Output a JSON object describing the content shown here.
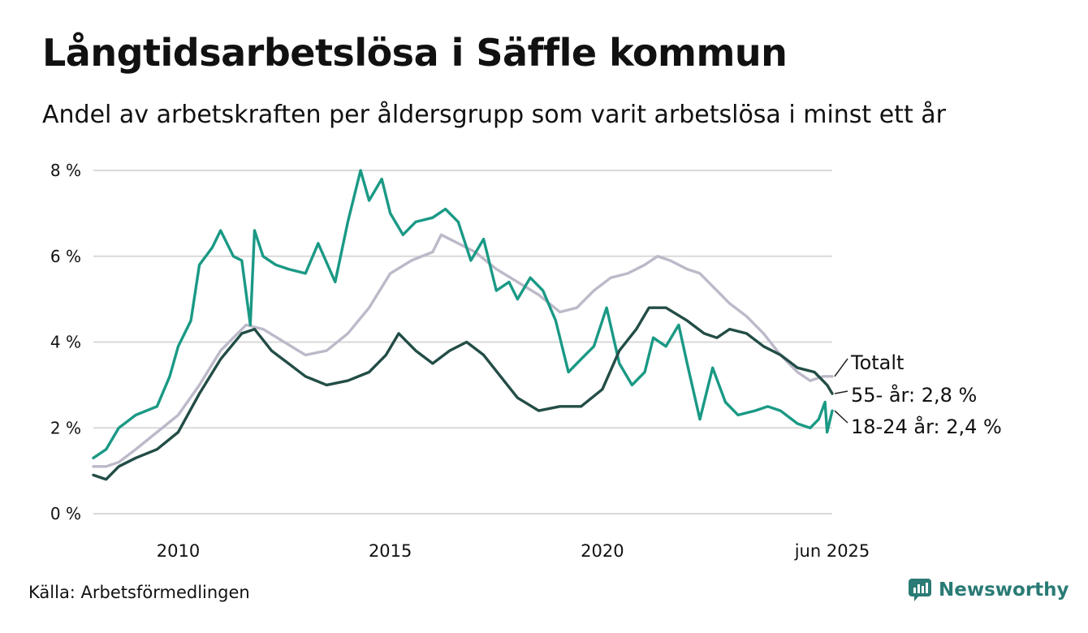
{
  "title": "Långtidsarbetslösa i Säffle kommun",
  "subtitle": "Andel av arbetskraften per åldersgrupp som varit arbetslösa i minst ett år",
  "source": "Källa: Arbetsförmedlingen",
  "brand": {
    "name": "Newsworthy",
    "icon": "newsworthy-logo-icon"
  },
  "colors": {
    "total": "#bdb9c9",
    "age55": "#234d47",
    "age1824": "#1a9985",
    "grid": "#d9d9d9"
  },
  "chart_data": {
    "type": "line",
    "y_unit": "%",
    "ylim": [
      0,
      8
    ],
    "yticks": [
      {
        "v": 0,
        "label": "0 %"
      },
      {
        "v": 2,
        "label": "2 %"
      },
      {
        "v": 4,
        "label": "4 %"
      },
      {
        "v": 6,
        "label": "6 %"
      },
      {
        "v": 8,
        "label": "8 %"
      }
    ],
    "xlim": [
      2008.0,
      2025.42
    ],
    "xticks": [
      {
        "v": 2010,
        "label": "2010"
      },
      {
        "v": 2015,
        "label": "2015"
      },
      {
        "v": 2020,
        "label": "2020"
      },
      {
        "v": 2025.42,
        "label": "jun 2025"
      }
    ],
    "grid": true,
    "series": [
      {
        "key": "total",
        "name": "Totalt",
        "label": "Totalt",
        "points": [
          [
            2008.0,
            1.1
          ],
          [
            2008.3,
            1.1
          ],
          [
            2008.6,
            1.2
          ],
          [
            2009.0,
            1.5
          ],
          [
            2009.5,
            1.9
          ],
          [
            2010.0,
            2.3
          ],
          [
            2010.5,
            3.0
          ],
          [
            2011.0,
            3.8
          ],
          [
            2011.3,
            4.1
          ],
          [
            2011.6,
            4.4
          ],
          [
            2012.0,
            4.3
          ],
          [
            2012.5,
            4.0
          ],
          [
            2013.0,
            3.7
          ],
          [
            2013.5,
            3.8
          ],
          [
            2014.0,
            4.2
          ],
          [
            2014.5,
            4.8
          ],
          [
            2015.0,
            5.6
          ],
          [
            2015.5,
            5.9
          ],
          [
            2016.0,
            6.1
          ],
          [
            2016.2,
            6.5
          ],
          [
            2016.6,
            6.3
          ],
          [
            2017.0,
            6.1
          ],
          [
            2017.5,
            5.7
          ],
          [
            2018.0,
            5.4
          ],
          [
            2018.5,
            5.1
          ],
          [
            2019.0,
            4.7
          ],
          [
            2019.4,
            4.8
          ],
          [
            2019.8,
            5.2
          ],
          [
            2020.2,
            5.5
          ],
          [
            2020.6,
            5.6
          ],
          [
            2021.0,
            5.8
          ],
          [
            2021.3,
            6.0
          ],
          [
            2021.6,
            5.9
          ],
          [
            2022.0,
            5.7
          ],
          [
            2022.3,
            5.6
          ],
          [
            2022.6,
            5.3
          ],
          [
            2023.0,
            4.9
          ],
          [
            2023.4,
            4.6
          ],
          [
            2023.8,
            4.2
          ],
          [
            2024.2,
            3.7
          ],
          [
            2024.6,
            3.3
          ],
          [
            2024.9,
            3.1
          ],
          [
            2025.2,
            3.2
          ],
          [
            2025.42,
            3.2
          ]
        ]
      },
      {
        "key": "age55",
        "name": "55- år",
        "label": "55- år: 2,8 %",
        "points": [
          [
            2008.0,
            0.9
          ],
          [
            2008.3,
            0.8
          ],
          [
            2008.6,
            1.1
          ],
          [
            2009.0,
            1.3
          ],
          [
            2009.5,
            1.5
          ],
          [
            2010.0,
            1.9
          ],
          [
            2010.5,
            2.8
          ],
          [
            2011.0,
            3.6
          ],
          [
            2011.5,
            4.2
          ],
          [
            2011.8,
            4.3
          ],
          [
            2012.2,
            3.8
          ],
          [
            2012.6,
            3.5
          ],
          [
            2013.0,
            3.2
          ],
          [
            2013.5,
            3.0
          ],
          [
            2014.0,
            3.1
          ],
          [
            2014.5,
            3.3
          ],
          [
            2014.9,
            3.7
          ],
          [
            2015.2,
            4.2
          ],
          [
            2015.6,
            3.8
          ],
          [
            2016.0,
            3.5
          ],
          [
            2016.4,
            3.8
          ],
          [
            2016.8,
            4.0
          ],
          [
            2017.2,
            3.7
          ],
          [
            2017.6,
            3.2
          ],
          [
            2018.0,
            2.7
          ],
          [
            2018.5,
            2.4
          ],
          [
            2019.0,
            2.5
          ],
          [
            2019.5,
            2.5
          ],
          [
            2020.0,
            2.9
          ],
          [
            2020.4,
            3.8
          ],
          [
            2020.8,
            4.3
          ],
          [
            2021.1,
            4.8
          ],
          [
            2021.5,
            4.8
          ],
          [
            2022.0,
            4.5
          ],
          [
            2022.4,
            4.2
          ],
          [
            2022.7,
            4.1
          ],
          [
            2023.0,
            4.3
          ],
          [
            2023.4,
            4.2
          ],
          [
            2023.8,
            3.9
          ],
          [
            2024.2,
            3.7
          ],
          [
            2024.6,
            3.4
          ],
          [
            2025.0,
            3.3
          ],
          [
            2025.3,
            3.0
          ],
          [
            2025.42,
            2.8
          ]
        ]
      },
      {
        "key": "age1824",
        "name": "18-24 år",
        "label": "18-24 år: 2,4 %",
        "points": [
          [
            2008.0,
            1.3
          ],
          [
            2008.3,
            1.5
          ],
          [
            2008.6,
            2.0
          ],
          [
            2009.0,
            2.3
          ],
          [
            2009.5,
            2.5
          ],
          [
            2009.8,
            3.2
          ],
          [
            2010.0,
            3.9
          ],
          [
            2010.3,
            4.5
          ],
          [
            2010.5,
            5.8
          ],
          [
            2010.8,
            6.2
          ],
          [
            2011.0,
            6.6
          ],
          [
            2011.3,
            6.0
          ],
          [
            2011.5,
            5.9
          ],
          [
            2011.7,
            4.4
          ],
          [
            2011.8,
            6.6
          ],
          [
            2012.0,
            6.0
          ],
          [
            2012.3,
            5.8
          ],
          [
            2012.6,
            5.7
          ],
          [
            2013.0,
            5.6
          ],
          [
            2013.3,
            6.3
          ],
          [
            2013.7,
            5.4
          ],
          [
            2014.0,
            6.8
          ],
          [
            2014.3,
            8.0
          ],
          [
            2014.5,
            7.3
          ],
          [
            2014.8,
            7.8
          ],
          [
            2015.0,
            7.0
          ],
          [
            2015.3,
            6.5
          ],
          [
            2015.6,
            6.8
          ],
          [
            2016.0,
            6.9
          ],
          [
            2016.3,
            7.1
          ],
          [
            2016.6,
            6.8
          ],
          [
            2016.9,
            5.9
          ],
          [
            2017.2,
            6.4
          ],
          [
            2017.5,
            5.2
          ],
          [
            2017.8,
            5.4
          ],
          [
            2018.0,
            5.0
          ],
          [
            2018.3,
            5.5
          ],
          [
            2018.6,
            5.2
          ],
          [
            2018.9,
            4.5
          ],
          [
            2019.2,
            3.3
          ],
          [
            2019.5,
            3.6
          ],
          [
            2019.8,
            3.9
          ],
          [
            2020.1,
            4.8
          ],
          [
            2020.4,
            3.5
          ],
          [
            2020.7,
            3.0
          ],
          [
            2021.0,
            3.3
          ],
          [
            2021.2,
            4.1
          ],
          [
            2021.5,
            3.9
          ],
          [
            2021.8,
            4.4
          ],
          [
            2022.0,
            3.5
          ],
          [
            2022.3,
            2.2
          ],
          [
            2022.6,
            3.4
          ],
          [
            2022.9,
            2.6
          ],
          [
            2023.2,
            2.3
          ],
          [
            2023.6,
            2.4
          ],
          [
            2023.9,
            2.5
          ],
          [
            2024.2,
            2.4
          ],
          [
            2024.6,
            2.1
          ],
          [
            2024.9,
            2.0
          ],
          [
            2025.1,
            2.2
          ],
          [
            2025.25,
            2.6
          ],
          [
            2025.3,
            1.9
          ],
          [
            2025.42,
            2.4
          ]
        ]
      }
    ]
  }
}
